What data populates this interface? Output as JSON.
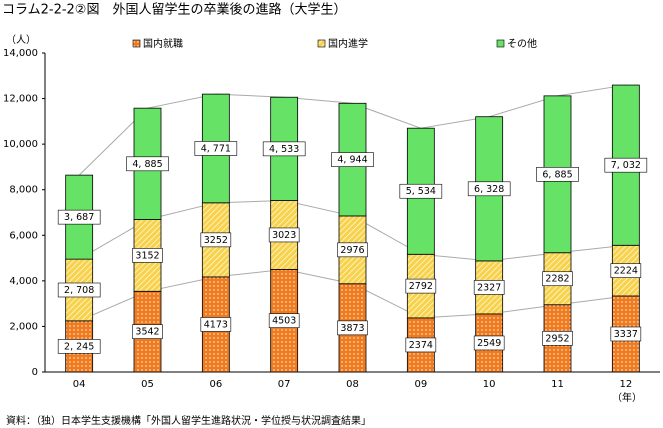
{
  "chart_data": {
    "type": "stacked-bar",
    "title": "コラム2-2-2②図　外国人留学生の卒業後の進路（大学生）",
    "y_unit": "（人）",
    "x_unit": "（年）",
    "source": "資料：（独）日本学生支援機構「外国人留学生進路状況・学位授与状況調査結果」",
    "categories": [
      "04",
      "05",
      "06",
      "07",
      "08",
      "09",
      "10",
      "11",
      "12"
    ],
    "series": [
      {
        "name": "国内就職",
        "color": "#f07a1e",
        "pattern": "dots",
        "values": [
          2245,
          3542,
          4173,
          4503,
          3873,
          2374,
          2549,
          2952,
          3337
        ],
        "value_labels": [
          "2, 245",
          "3542",
          "4173",
          "4503",
          "3873",
          "2374",
          "2549",
          "2952",
          "3337"
        ]
      },
      {
        "name": "国内進学",
        "color": "#f7d24a",
        "pattern": "hatch",
        "values": [
          2708,
          3152,
          3252,
          3023,
          2976,
          2792,
          2327,
          2282,
          2224
        ],
        "value_labels": [
          "2, 708",
          "3152",
          "3252",
          "3023",
          "2976",
          "2792",
          "2327",
          "2282",
          "2224"
        ]
      },
      {
        "name": "その他",
        "color": "#66e266",
        "pattern": "none",
        "values": [
          3687,
          4885,
          4771,
          4533,
          4944,
          5534,
          6328,
          6885,
          7032
        ],
        "value_labels": [
          "3, 687",
          "4, 885",
          "4, 771",
          "4, 533",
          "4, 944",
          "5, 534",
          "6, 328",
          "6, 885",
          "7, 032"
        ]
      }
    ],
    "ylim": [
      0,
      14000
    ],
    "yticks": [
      0,
      {
        "value": 2000,
        "label": "2,000"
      },
      {
        "value": 4000,
        "label": "4,000"
      },
      {
        "value": 6000,
        "label": "6,000"
      },
      {
        "value": 8000,
        "label": "8,000"
      },
      {
        "value": 10000,
        "label": "10,000"
      },
      {
        "value": 12000,
        "label": "12,000"
      },
      {
        "value": 14000,
        "label": "14,000"
      }
    ],
    "connector_lines": true
  }
}
